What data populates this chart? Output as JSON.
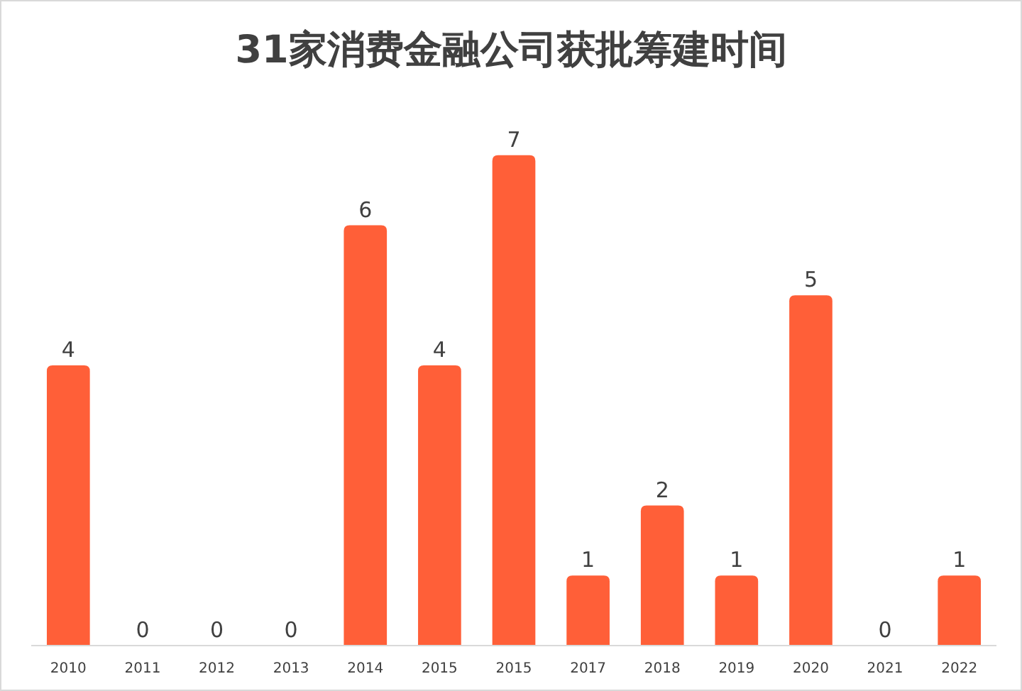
{
  "chart_data": {
    "type": "bar",
    "title": "31家消费金融公司获批筹建时间",
    "categories": [
      "2010",
      "2011",
      "2012",
      "2013",
      "2014",
      "2015",
      "2015",
      "2017",
      "2018",
      "2019",
      "2020",
      "2021",
      "2022"
    ],
    "values": [
      4,
      0,
      0,
      0,
      6,
      4,
      7,
      1,
      2,
      1,
      5,
      0,
      1
    ],
    "color": "#ff5f38",
    "data_labels": true
  }
}
